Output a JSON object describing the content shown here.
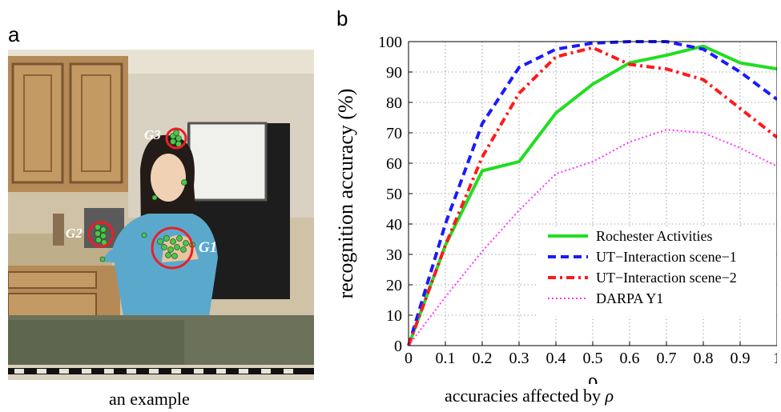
{
  "panels": {
    "left_letter": "a",
    "right_letter": "b",
    "left_caption": "an example",
    "right_caption_prefix": "accuracies affected by ",
    "right_caption_symbol": "ρ"
  },
  "photo": {
    "groups": [
      {
        "label": "G3"
      },
      {
        "label": "G2"
      },
      {
        "label": "G1"
      }
    ],
    "marker_color": "#e8202a",
    "point_color": "#4dc64a"
  },
  "chart_data": {
    "type": "line",
    "xlabel": "ρ",
    "ylabel": "recognition accuracy (%)",
    "xlim": [
      0,
      1
    ],
    "ylim": [
      0,
      100
    ],
    "xticks": [
      "0",
      "0.1",
      "0.2",
      "0.3",
      "0.4",
      "0.5",
      "0.6",
      "0.7",
      "0.8",
      "0.9",
      "1"
    ],
    "yticks": [
      "0",
      "10",
      "20",
      "30",
      "40",
      "50",
      "60",
      "70",
      "80",
      "90",
      "100"
    ],
    "grid": true,
    "legend_position": "bottom-right",
    "x": [
      0,
      0.1,
      0.2,
      0.3,
      0.4,
      0.5,
      0.6,
      0.7,
      0.8,
      0.9,
      1.0
    ],
    "series": [
      {
        "name": "Rochester Activities",
        "color": "#22dd22",
        "dash": "solid",
        "values": [
          0,
          33,
          57.5,
          60.5,
          76.5,
          86,
          93,
          95.5,
          98.5,
          93,
          91
        ]
      },
      {
        "name": "UT−Interaction scene−1",
        "color": "#1a1aff",
        "dash": "dashed",
        "values": [
          0,
          40,
          73,
          91.5,
          97.5,
          99.5,
          100,
          100,
          97.5,
          90,
          81
        ]
      },
      {
        "name": "UT−Interaction scene−2",
        "color": "#ff1a1a",
        "dash": "dashdot",
        "values": [
          0,
          33,
          62,
          83,
          95,
          98,
          92.5,
          91,
          87.5,
          78,
          68.5
        ]
      },
      {
        "name": "DARPA Y1",
        "color": "#ff33ff",
        "dash": "dotted",
        "values": [
          0,
          16,
          31,
          44.5,
          56.5,
          60.5,
          67,
          71,
          70,
          65,
          59
        ]
      }
    ]
  }
}
